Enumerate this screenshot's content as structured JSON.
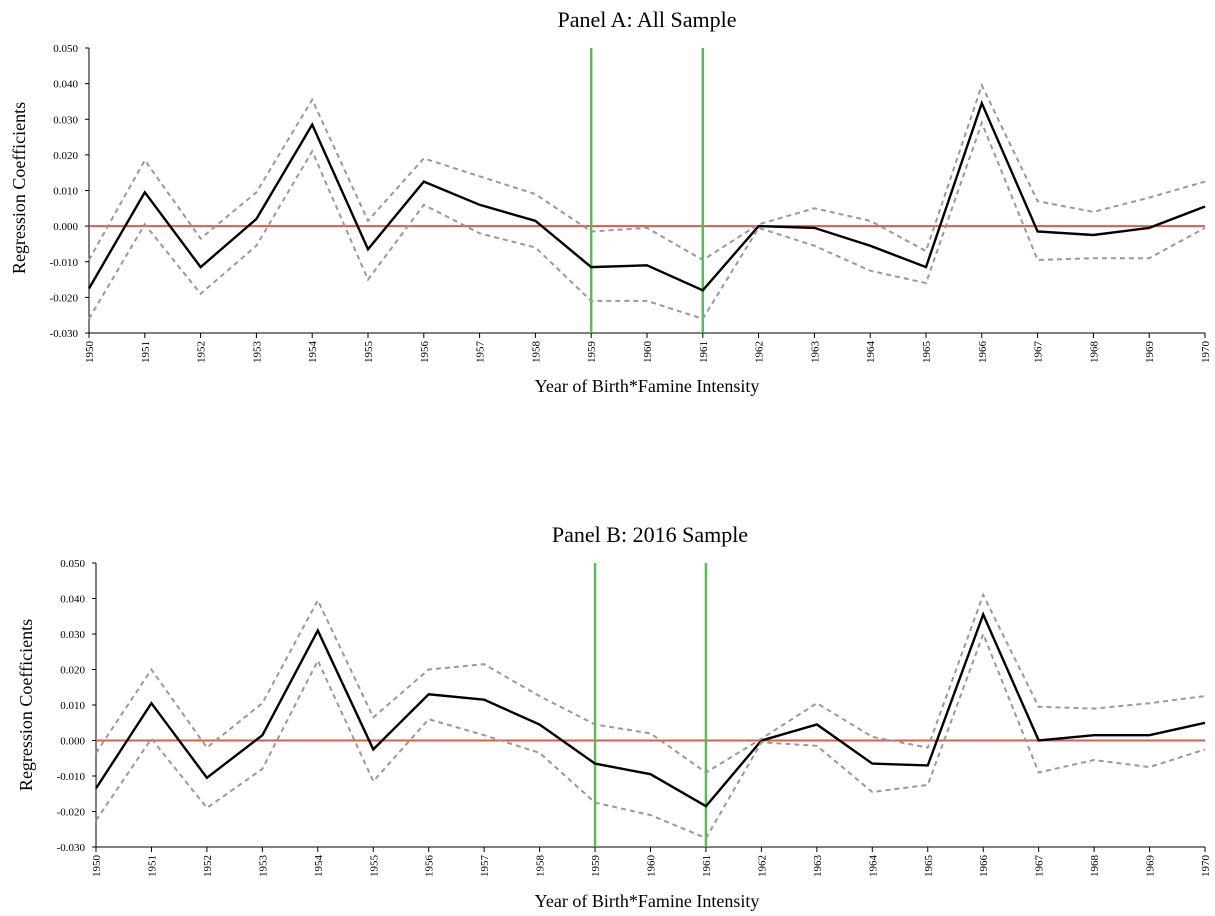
{
  "chart_data": [
    {
      "type": "line",
      "title": "Panel A: All Sample",
      "xlabel": "Year of Birth*Famine Intensity",
      "ylabel": "Regression Coefficients",
      "ylim": [
        -0.03,
        0.05
      ],
      "yticks": [
        "-0.030",
        "-0.020",
        "-0.010",
        "0.000",
        "0.010",
        "0.020",
        "0.030",
        "0.040",
        "0.050"
      ],
      "x": [
        "1950",
        "1951",
        "1952",
        "1953",
        "1954",
        "1955",
        "1956",
        "1957",
        "1958",
        "1959",
        "1960",
        "1961",
        "1962",
        "1963",
        "1964",
        "1965",
        "1966",
        "1967",
        "1968",
        "1969",
        "1970"
      ],
      "grid": false,
      "zero_line_color": "#e05a47",
      "vertical_markers": [
        {
          "x": "1959",
          "color": "#5cb85c"
        },
        {
          "x": "1961",
          "color": "#5cb85c"
        }
      ],
      "series": [
        {
          "role": "estimate",
          "style": "solid",
          "color": "#000000",
          "values": [
            -0.0175,
            0.0095,
            -0.0115,
            0.002,
            0.0285,
            -0.0065,
            0.0125,
            0.006,
            0.0015,
            -0.0115,
            -0.011,
            -0.018,
            0.0,
            -0.0005,
            -0.0055,
            -0.0115,
            0.0345,
            -0.0015,
            -0.0025,
            -0.0005,
            0.0055
          ]
        },
        {
          "role": "upper",
          "style": "dashed",
          "color": "#999999",
          "values": [
            -0.0095,
            0.0185,
            -0.0035,
            0.0095,
            0.0355,
            0.0015,
            0.019,
            0.014,
            0.009,
            -0.0015,
            -0.0005,
            -0.0095,
            0.0005,
            0.005,
            0.0015,
            -0.007,
            0.0395,
            0.007,
            0.004,
            0.008,
            0.0125
          ]
        },
        {
          "role": "lower",
          "style": "dashed",
          "color": "#999999",
          "values": [
            -0.026,
            0.0005,
            -0.019,
            -0.0055,
            0.021,
            -0.015,
            0.006,
            -0.002,
            -0.006,
            -0.021,
            -0.021,
            -0.026,
            -0.0005,
            -0.0055,
            -0.0125,
            -0.016,
            0.029,
            -0.0095,
            -0.009,
            -0.009,
            -0.0005
          ]
        }
      ]
    },
    {
      "type": "line",
      "title": "Panel B: 2016 Sample",
      "xlabel": "Year of Birth*Famine Intensity",
      "ylabel": "Regression Coefficients",
      "ylim": [
        -0.03,
        0.05
      ],
      "yticks": [
        "-0.030",
        "-0.020",
        "-0.010",
        "0.000",
        "0.010",
        "0.020",
        "0.030",
        "0.040",
        "0.050"
      ],
      "x": [
        "1950",
        "1951",
        "1952",
        "1953",
        "1954",
        "1955",
        "1956",
        "1957",
        "1958",
        "1959",
        "1960",
        "1961",
        "1962",
        "1963",
        "1964",
        "1965",
        "1966",
        "1967",
        "1968",
        "1969",
        "1970"
      ],
      "grid": false,
      "zero_line_color": "#e05a47",
      "vertical_markers": [
        {
          "x": "1959",
          "color": "#5cb85c"
        },
        {
          "x": "1961",
          "color": "#5cb85c"
        }
      ],
      "series": [
        {
          "role": "estimate",
          "style": "solid",
          "color": "#000000",
          "values": [
            -0.0135,
            0.0105,
            -0.0105,
            0.0015,
            0.031,
            -0.0025,
            0.013,
            0.0115,
            0.0045,
            -0.0065,
            -0.0095,
            -0.0185,
            0.0,
            0.0045,
            -0.0065,
            -0.007,
            0.0355,
            0.0,
            0.0015,
            0.0015,
            0.005
          ]
        },
        {
          "role": "upper",
          "style": "dashed",
          "color": "#999999",
          "values": [
            -0.0035,
            0.02,
            -0.002,
            0.0105,
            0.0395,
            0.0065,
            0.02,
            0.0215,
            0.0125,
            0.0045,
            0.002,
            -0.009,
            0.0005,
            0.0105,
            0.001,
            -0.002,
            0.041,
            0.0095,
            0.009,
            0.0105,
            0.0125
          ]
        },
        {
          "role": "lower",
          "style": "dashed",
          "color": "#999999",
          "values": [
            -0.0225,
            0.0005,
            -0.019,
            -0.008,
            0.0225,
            -0.0115,
            0.006,
            0.0015,
            -0.0035,
            -0.0175,
            -0.021,
            -0.0275,
            -0.0005,
            -0.0015,
            -0.0145,
            -0.0125,
            0.03,
            -0.009,
            -0.0055,
            -0.0075,
            -0.0025
          ]
        }
      ]
    }
  ]
}
